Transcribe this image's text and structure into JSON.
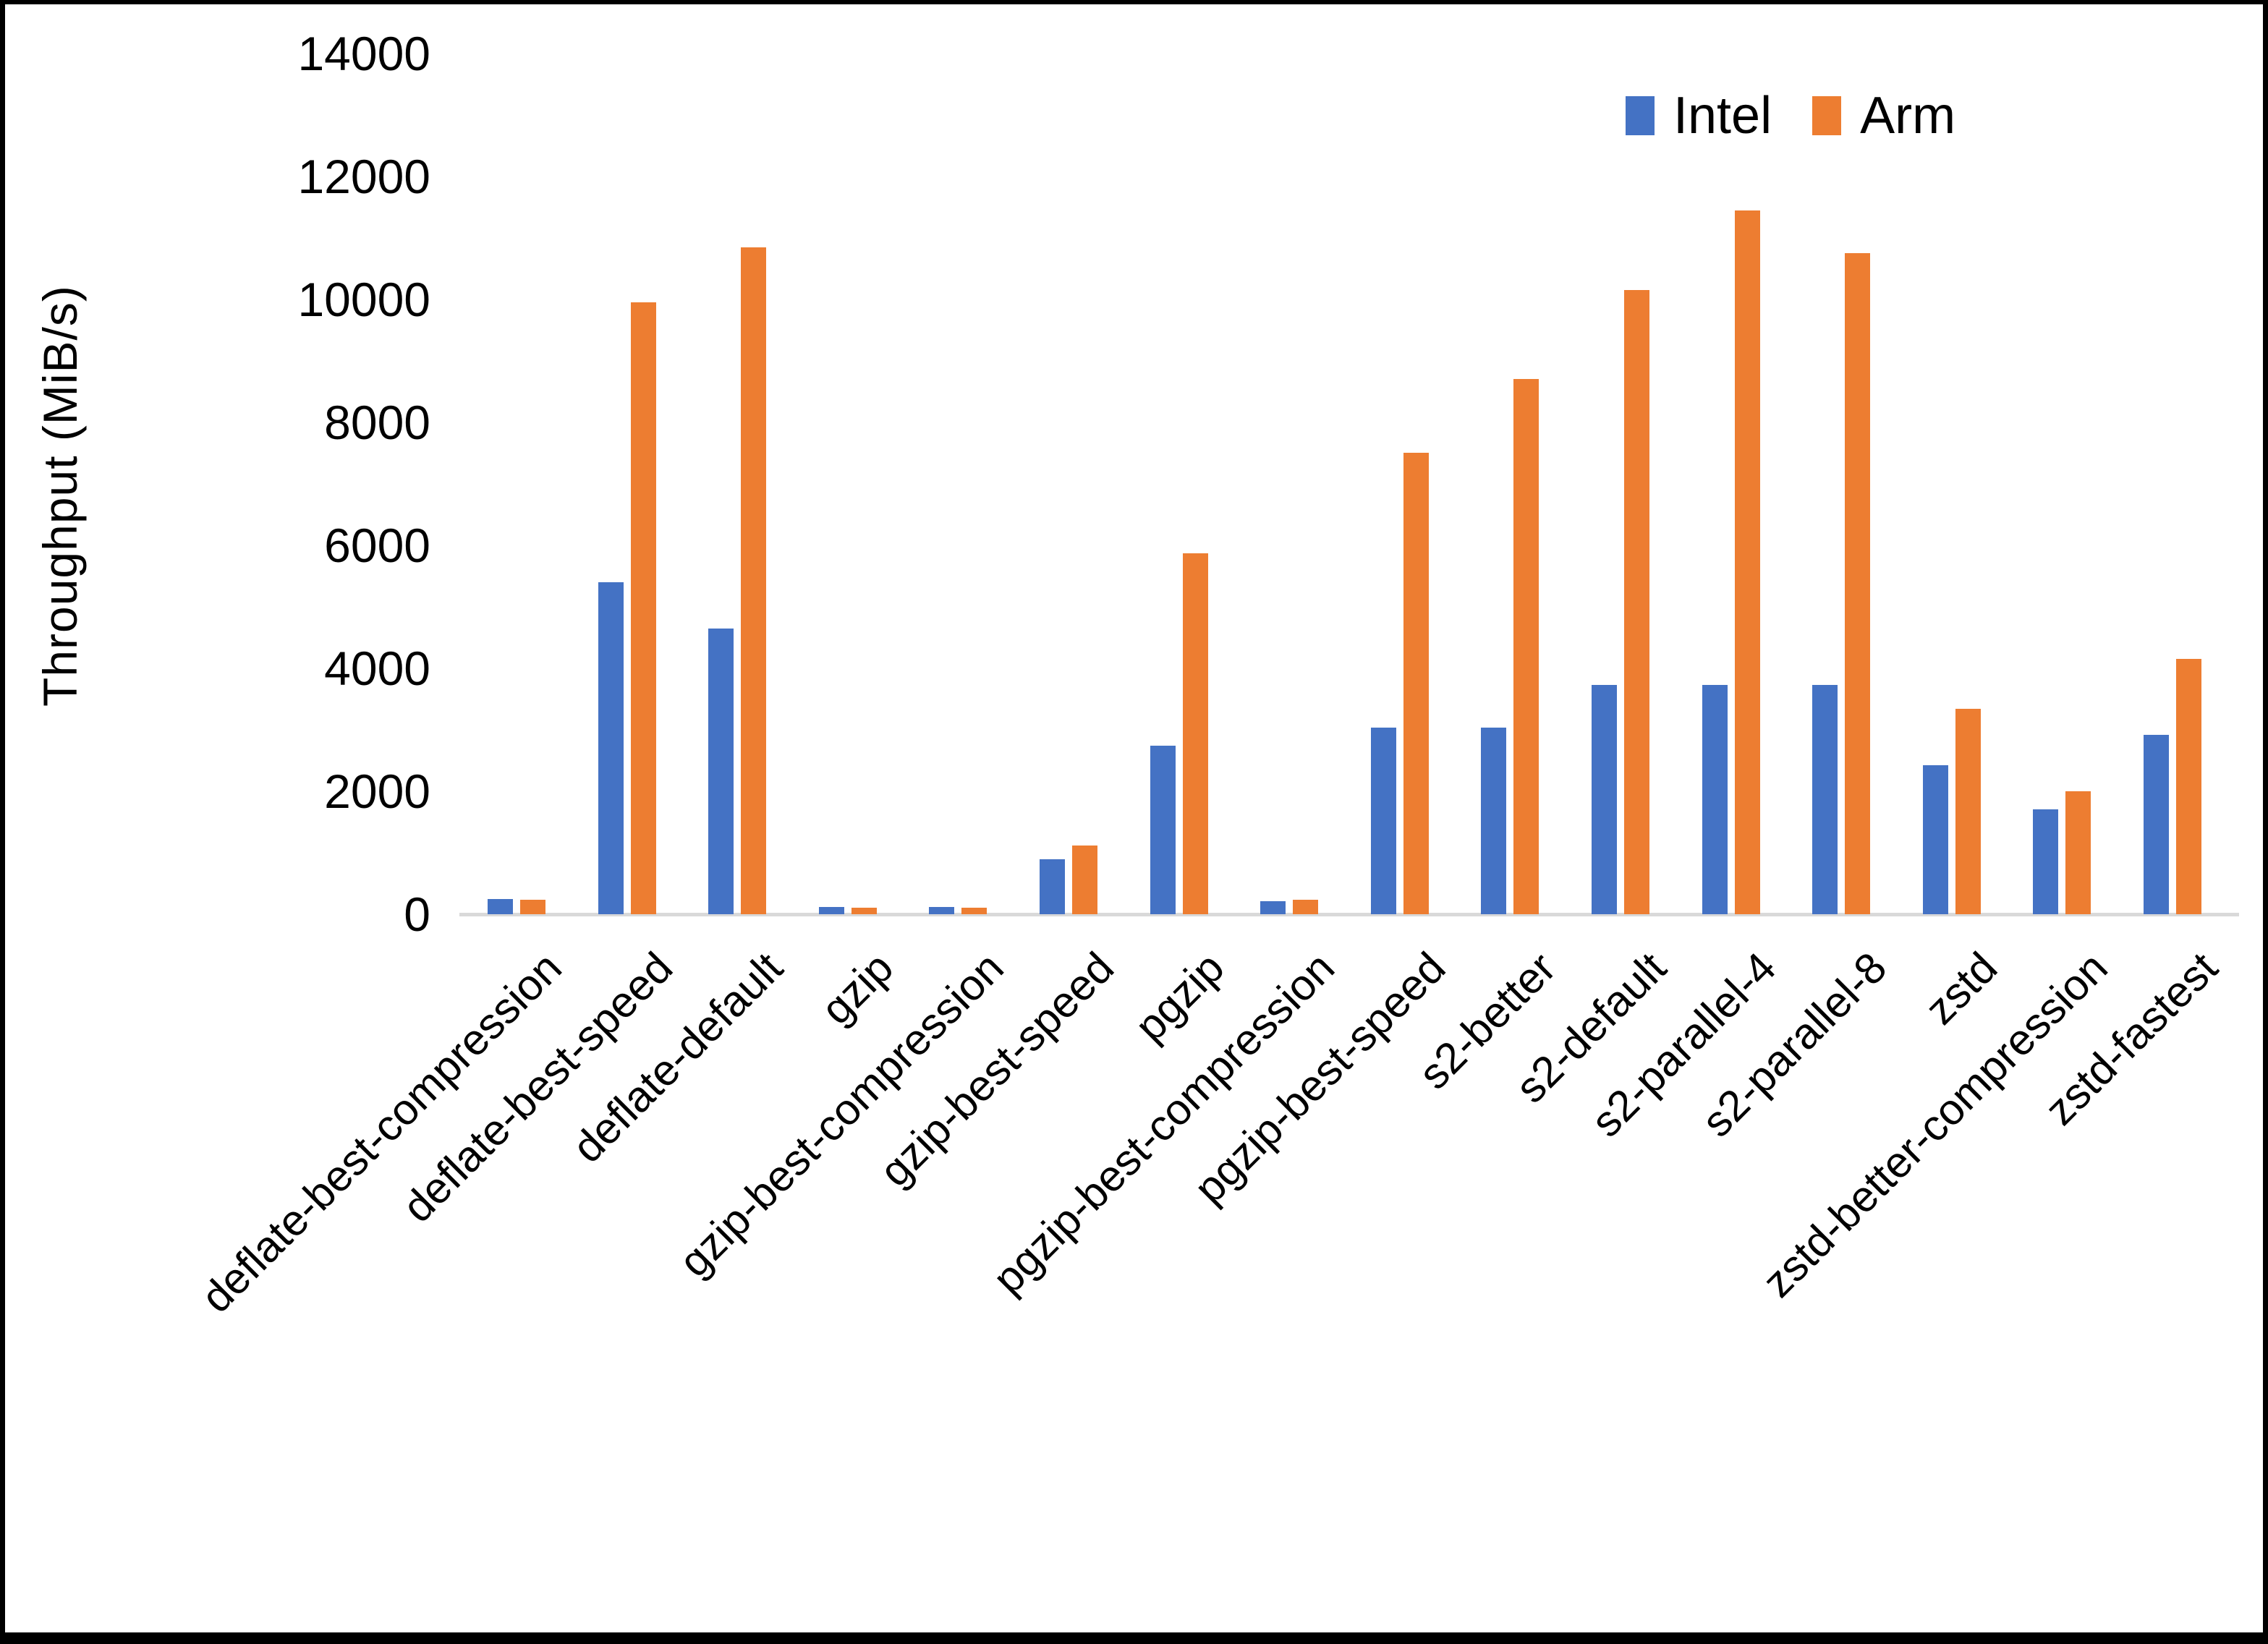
{
  "chart_data": {
    "type": "bar",
    "title": "",
    "xlabel": "",
    "ylabel": "Throughput (MiB/s)",
    "ylim": [
      0,
      14000
    ],
    "yticks": [
      0,
      2000,
      4000,
      6000,
      8000,
      10000,
      12000,
      14000
    ],
    "grid": false,
    "legend_position": "top-right",
    "categories": [
      "deflate-best-compression",
      "deflate-best-speed",
      "deflate-default",
      "gzip",
      "gzip-best-compression",
      "gzip-best-speed",
      "pgzip",
      "pgzip-best-compression",
      "pgzip-best-speed",
      "s2-better",
      "s2-default",
      "s2-parallel-4",
      "s2-parallel-8",
      "zstd",
      "zstd-better-compression",
      "zstd-fastest"
    ],
    "series": [
      {
        "name": "Intel",
        "color": "#4472C4",
        "values": [
          250,
          5400,
          4650,
          120,
          120,
          890,
          2740,
          210,
          3040,
          3040,
          3730,
          3730,
          3730,
          2420,
          1700,
          2920
        ]
      },
      {
        "name": "Arm",
        "color": "#ED7D31",
        "values": [
          240,
          9950,
          10850,
          100,
          105,
          1120,
          5870,
          240,
          7500,
          8700,
          10150,
          11450,
          10750,
          3340,
          2000,
          4150
        ]
      }
    ]
  },
  "legend": {
    "items": [
      {
        "label": "Intel",
        "color": "#4472C4"
      },
      {
        "label": "Arm",
        "color": "#ED7D31"
      }
    ]
  },
  "axis": {
    "ylabel": "Throughput (MiB/s)"
  },
  "colors": {
    "background": "#FFFFFF",
    "frame": "#000000",
    "baseline": "#D9D9D9",
    "text": "#000000"
  }
}
